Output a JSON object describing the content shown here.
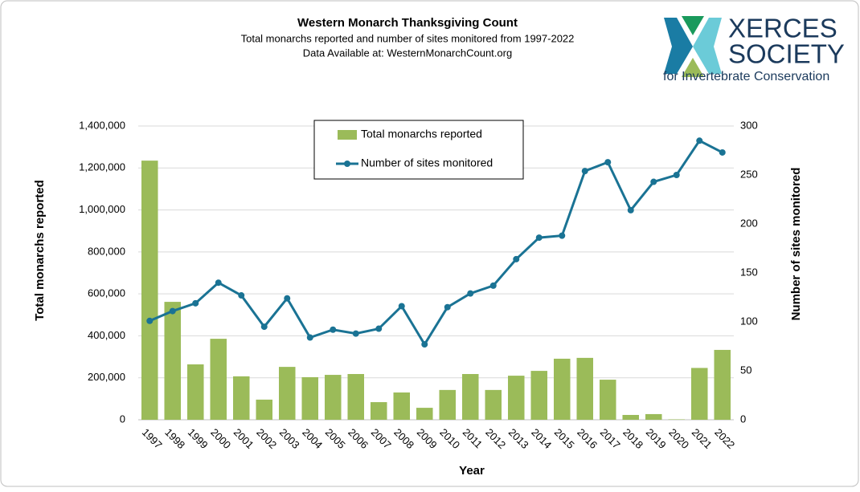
{
  "chart_data": {
    "type": "bar_line",
    "title": "Western Monarch Thanksgiving Count",
    "subtitle": "Total monarchs reported and number of sites monitored from 1997-2022",
    "note": "Data Available at: WesternMonarchCount.org",
    "xlabel": "Year",
    "ylabel": "Total monarchs reported",
    "y2label": "Number of sites monitored",
    "categories": [
      "1997",
      "1998",
      "1999",
      "2000",
      "2001",
      "2002",
      "2003",
      "2004",
      "2005",
      "2006",
      "2007",
      "2008",
      "2009",
      "2010",
      "2011",
      "2012",
      "2013",
      "2014",
      "2015",
      "2016",
      "2017",
      "2018",
      "2019",
      "2020",
      "2021",
      "2022"
    ],
    "series": [
      {
        "name": "Total monarchs reported",
        "type": "bar",
        "color": "#9bbb59",
        "values": [
          1235000,
          562000,
          264000,
          386000,
          207000,
          96000,
          252000,
          203000,
          214000,
          218000,
          84000,
          130000,
          57000,
          142000,
          218000,
          142000,
          210000,
          233000,
          291000,
          295000,
          191000,
          23000,
          27000,
          2000,
          247000,
          333000
        ]
      },
      {
        "name": "Number of sites monitored",
        "type": "line",
        "axis": "y2",
        "color": "#1a7394",
        "values": [
          101,
          111,
          119,
          140,
          127,
          95,
          124,
          84,
          92,
          88,
          93,
          116,
          77,
          115,
          129,
          137,
          164,
          186,
          188,
          254,
          263,
          214,
          243,
          250,
          285,
          273
        ]
      }
    ],
    "ylim": [
      0,
      1400000
    ],
    "yticks": [
      0,
      {
        "value": 200000,
        "label": "200,000"
      },
      {
        "value": 400000,
        "label": "400,000"
      },
      {
        "value": 600000,
        "label": "600,000"
      },
      {
        "value": 800000,
        "label": "800,000"
      },
      {
        "value": 1000000,
        "label": "1,000,000"
      },
      {
        "value": 1200000,
        "label": "1,200,000"
      },
      {
        "value": 1400000,
        "label": "1,400,000"
      }
    ],
    "y2lim": [
      0,
      300
    ],
    "y2ticks": [
      0,
      50,
      100,
      150,
      200,
      250,
      300
    ],
    "grid": true,
    "legend": "top"
  },
  "logo": {
    "line1": "XERCES",
    "line2": "SOCIETY",
    "tagline": "for Invertebrate Conservation"
  }
}
